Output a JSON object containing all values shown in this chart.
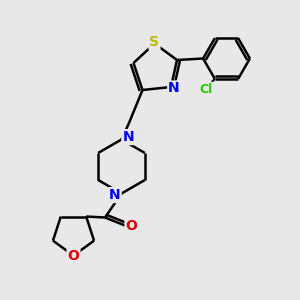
{
  "bg_color": "#e8e8e8",
  "bond_color": "#000000",
  "bond_width": 1.8,
  "S_color": "#bbbb00",
  "N_color": "#0000ee",
  "O_color": "#dd0000",
  "Cl_color": "#22cc00",
  "fig_size": [
    3.0,
    3.0
  ],
  "dpi": 100,
  "xlim": [
    0,
    10
  ],
  "ylim": [
    0,
    10
  ]
}
